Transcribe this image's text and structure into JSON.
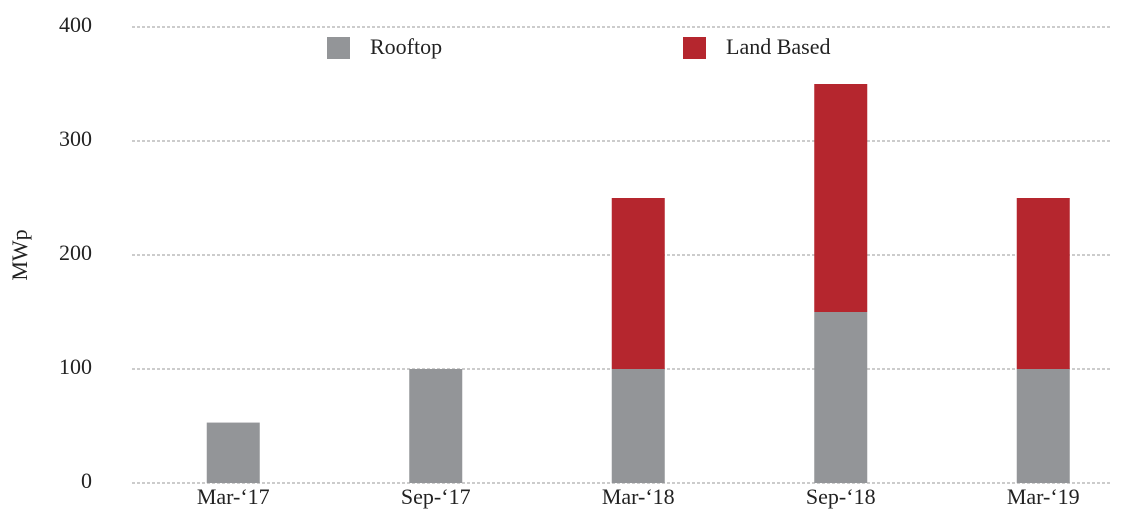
{
  "chart_data": {
    "type": "stacked_bar",
    "y_label": "MWp",
    "categories": [
      "Mar-‘17",
      "Sep-‘17",
      "Mar-‘18",
      "Sep-‘18",
      "Mar-‘19"
    ],
    "series": [
      {
        "name": "Rooftop",
        "color": "#939598",
        "values": [
          53,
          100,
          100,
          150,
          100
        ]
      },
      {
        "name": "Land Based",
        "color": "#b5262e",
        "values": [
          0,
          0,
          150,
          200,
          150
        ]
      }
    ],
    "ylim": [
      0,
      400
    ],
    "yticks": [
      0,
      100,
      200,
      300,
      400
    ],
    "grid": true,
    "legend": "top"
  }
}
